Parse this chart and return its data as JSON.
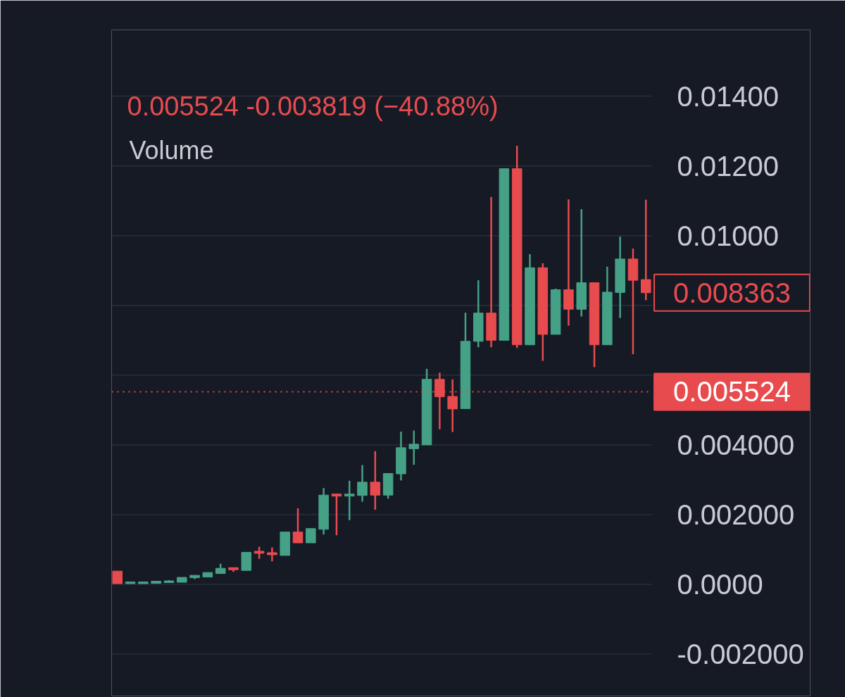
{
  "chart_data": {
    "type": "candlestick",
    "subtitle": "0.005524 -0.003819 (−40.88%)",
    "annotations": [
      "Volume",
      "0.008363"
    ],
    "categories": [
      null,
      null,
      null,
      null,
      null,
      null,
      null,
      null,
      null,
      null,
      null,
      null,
      null,
      null,
      null,
      null,
      null,
      null,
      null,
      null,
      null,
      null,
      null,
      null,
      null,
      null,
      null,
      null,
      null,
      null,
      null,
      null,
      null,
      null,
      null,
      null,
      null,
      null,
      null,
      null,
      null,
      null
    ],
    "ohlc": [
      [
        0.00038,
        0.00038,
        2e-05,
        2e-05
      ],
      [
        2e-05,
        7e-05,
        2e-05,
        7e-05
      ],
      [
        2e-05,
        7e-05,
        2e-05,
        7e-05
      ],
      [
        3e-05,
        9e-05,
        3e-05,
        9e-05
      ],
      [
        5e-05,
        0.00012,
        5e-05,
        0.0001
      ],
      [
        6e-05,
        0.0002,
        6e-05,
        0.0002
      ],
      [
        0.00019,
        0.00026,
        0.00015,
        0.00026
      ],
      [
        0.00021,
        0.00034,
        0.00021,
        0.00034
      ],
      [
        0.00031,
        0.00059,
        0.00031,
        0.00046
      ],
      [
        0.00048,
        0.00048,
        0.00036,
        0.00042
      ],
      [
        0.0004,
        0.00092,
        0.0004,
        0.00092
      ],
      [
        0.00095,
        0.00108,
        0.00073,
        0.00089
      ],
      [
        0.00091,
        0.00106,
        0.00066,
        0.00085
      ],
      [
        0.00083,
        0.0015,
        0.00083,
        0.0015
      ],
      [
        0.0015,
        0.00218,
        0.00119,
        0.00119
      ],
      [
        0.00119,
        0.0016,
        0.00119,
        0.0016
      ],
      [
        0.00158,
        0.00276,
        0.00143,
        0.00256
      ],
      [
        0.00259,
        0.00259,
        0.00141,
        0.00253
      ],
      [
        0.00253,
        0.00297,
        0.00184,
        0.00259
      ],
      [
        0.00255,
        0.00342,
        0.00237,
        0.00293
      ],
      [
        0.00293,
        0.00382,
        0.00214,
        0.00256
      ],
      [
        0.00256,
        0.00318,
        0.00246,
        0.00318
      ],
      [
        0.00317,
        0.00438,
        0.00298,
        0.00392
      ],
      [
        0.00389,
        0.00441,
        0.00343,
        0.00402
      ],
      [
        0.004,
        0.00618,
        0.004,
        0.00588
      ],
      [
        0.00588,
        0.00607,
        0.00445,
        0.00538
      ],
      [
        0.00539,
        0.00588,
        0.00437,
        0.00503
      ],
      [
        0.00504,
        0.00779,
        0.00504,
        0.00697
      ],
      [
        0.00697,
        0.00872,
        0.0068,
        0.00778
      ],
      [
        0.00778,
        0.01111,
        0.0068,
        0.007
      ],
      [
        0.007,
        0.01192,
        0.007,
        0.01192
      ],
      [
        0.01192,
        0.01258,
        0.00678,
        0.00687
      ],
      [
        0.00687,
        0.00947,
        0.00687,
        0.00908
      ],
      [
        0.00908,
        0.00921,
        0.00641,
        0.00717
      ],
      [
        0.00717,
        0.00848,
        0.00717,
        0.00845
      ],
      [
        0.00845,
        0.01104,
        0.00742,
        0.00789
      ],
      [
        0.00789,
        0.01076,
        0.00768,
        0.00865
      ],
      [
        0.00865,
        0.00865,
        0.00623,
        0.00687
      ],
      [
        0.00687,
        0.00911,
        0.00687,
        0.00838
      ],
      [
        0.00837,
        0.00997,
        0.00764,
        0.00933
      ],
      [
        0.00933,
        0.00963,
        0.0066,
        0.00872
      ],
      [
        0.00874,
        0.01103,
        0.00815,
        0.008363
      ]
    ],
    "colors": [
      "#e84b4e",
      "#45a186",
      "#45a186",
      "#45a186",
      "#45a186",
      "#45a186",
      "#45a186",
      "#45a186",
      "#45a186",
      "#e84b4e",
      "#45a186",
      "#e84b4e",
      "#e84b4e",
      "#45a186",
      "#e84b4e",
      "#45a186",
      "#45a186",
      "#e84b4e",
      "#45a186",
      "#45a186",
      "#e84b4e",
      "#45a186",
      "#45a186",
      "#45a186",
      "#45a186",
      "#e84b4e",
      "#e84b4e",
      "#45a186",
      "#45a186",
      "#e84b4e",
      "#45a186",
      "#e84b4e",
      "#45a186",
      "#e84b4e",
      "#45a186",
      "#e84b4e",
      "#45a186",
      "#e84b4e",
      "#45a186",
      "#45a186",
      "#e84b4e",
      "#e84b4e"
    ],
    "ylim": [
      -0.0032,
      0.0159
    ],
    "yticks": [
      {
        "value": 0.014,
        "label": "0.01400"
      },
      {
        "value": 0.012,
        "label": "0.01200"
      },
      {
        "value": 0.01,
        "label": "0.01000"
      },
      {
        "value": 0.008,
        "label": null
      },
      {
        "value": 0.006,
        "label": null
      },
      {
        "value": 0.004,
        "label": "0.004000"
      },
      {
        "value": 0.002,
        "label": "0.002000"
      },
      {
        "value": 0,
        "label": "0.0000"
      },
      {
        "value": -0.002,
        "label": "-0.002000"
      }
    ],
    "grid": "y",
    "tick_labels": "y",
    "ref_lines": [
      {
        "axis": "y",
        "value": 0.005524,
        "label": "0.005524",
        "color": "#e84b4e",
        "line_style": "dotted"
      }
    ]
  }
}
